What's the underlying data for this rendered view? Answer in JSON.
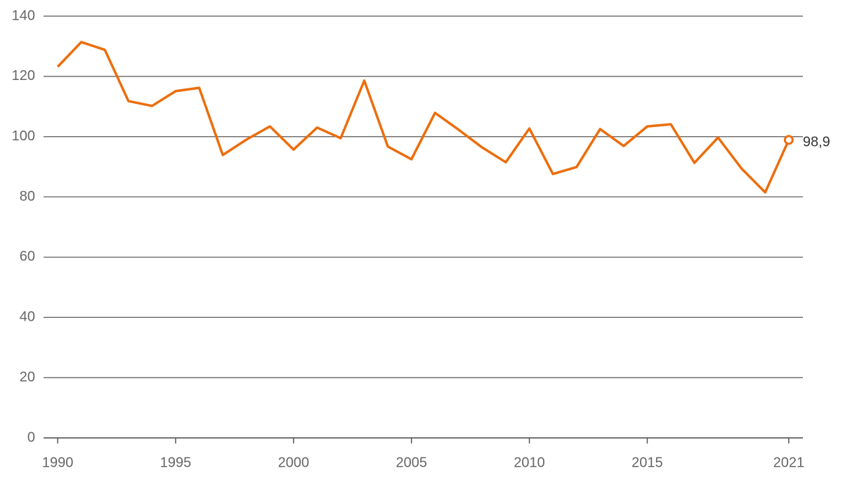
{
  "chart_data": {
    "type": "line",
    "x": [
      1990,
      1991,
      1992,
      1993,
      1994,
      1995,
      1996,
      1997,
      1998,
      1999,
      2000,
      2001,
      2002,
      2003,
      2004,
      2005,
      2006,
      2007,
      2008,
      2009,
      2010,
      2011,
      2012,
      2013,
      2014,
      2015,
      2016,
      2017,
      2018,
      2019,
      2020,
      2021
    ],
    "series": [
      {
        "color": "#ec6d0b",
        "values": [
          123.2,
          131.4,
          128.8,
          111.8,
          110.2,
          115.1,
          116.2,
          93.9,
          99.0,
          103.4,
          95.7,
          103.0,
          99.5,
          118.6,
          96.7,
          92.5,
          107.9,
          102.3,
          96.4,
          91.5,
          102.7,
          87.6,
          89.9,
          102.5,
          96.9,
          103.4,
          104.1,
          91.3,
          99.7,
          89.4,
          81.5,
          98.9
        ],
        "value_labels": [
          null,
          null,
          null,
          null,
          null,
          null,
          null,
          null,
          null,
          null,
          null,
          null,
          null,
          null,
          null,
          null,
          null,
          null,
          null,
          null,
          null,
          null,
          null,
          null,
          null,
          null,
          null,
          null,
          null,
          null,
          null,
          "98,9"
        ]
      }
    ],
    "xlim": [
      1989.4,
      2021.6
    ],
    "xticks": [
      1990,
      1995,
      2000,
      2005,
      2010,
      2015,
      2021
    ],
    "ylim": [
      0,
      140
    ],
    "yticks": [
      0,
      20,
      40,
      60,
      80,
      100,
      120,
      140
    ],
    "grid": true
  }
}
